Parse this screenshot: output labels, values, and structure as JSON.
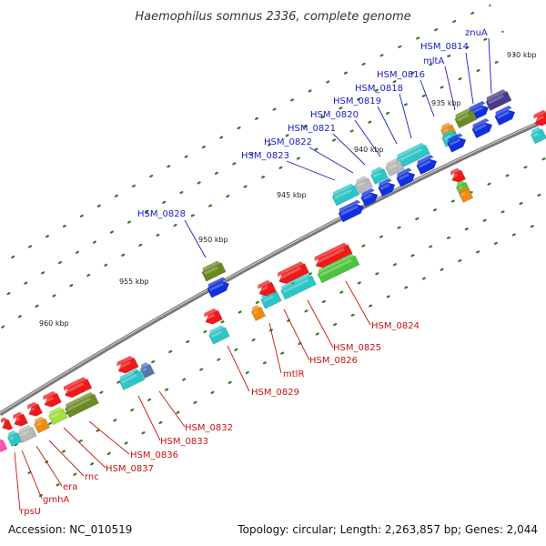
{
  "title": "Haemophilus somnus 2336, complete genome",
  "footer": {
    "accession": "Accession: NC_010519",
    "summary": "Topology: circular; Length: 2,263,857 bp; Genes: 2,044"
  },
  "colors": {
    "backbone": "#8e8e8e",
    "tick": "#2e7d1e",
    "label_forward": "#1a1acc",
    "label_reverse": "#cc1111",
    "red": "#f01818",
    "blue": "#1030e0",
    "cyan": "#2cc6c6",
    "olive": "#6a8a22",
    "gray": "#b8b8b8",
    "orange": "#f08a10",
    "purple": "#4a3a8a",
    "green": "#4cc43c",
    "lime": "#a0e040",
    "pink": "#ff4fb0",
    "steel": "#4f7ab0"
  },
  "ticks": [
    {
      "label": "930 kbp"
    },
    {
      "label": "935 kbp"
    },
    {
      "label": "940 kbp"
    },
    {
      "label": "945 kbp"
    },
    {
      "label": "950 kbp"
    },
    {
      "label": "955 kbp"
    },
    {
      "label": "960 kbp"
    }
  ],
  "gene_labels_forward": [
    "znuA",
    "HSM_0814",
    "mltA",
    "HSM_0816",
    "HSM_0818",
    "HSM_0819",
    "HSM_0820",
    "HSM_0821",
    "HSM_0822",
    "HSM_0823",
    "HSM_0828"
  ],
  "gene_labels_reverse": [
    "HSM_0824",
    "HSM_0825",
    "HSM_0826",
    "mtlR",
    "HSM_0829",
    "HSM_0832",
    "HSM_0833",
    "HSM_0836",
    "HSM_0837",
    "rnc",
    "era",
    "gmhA",
    "rpsU"
  ]
}
